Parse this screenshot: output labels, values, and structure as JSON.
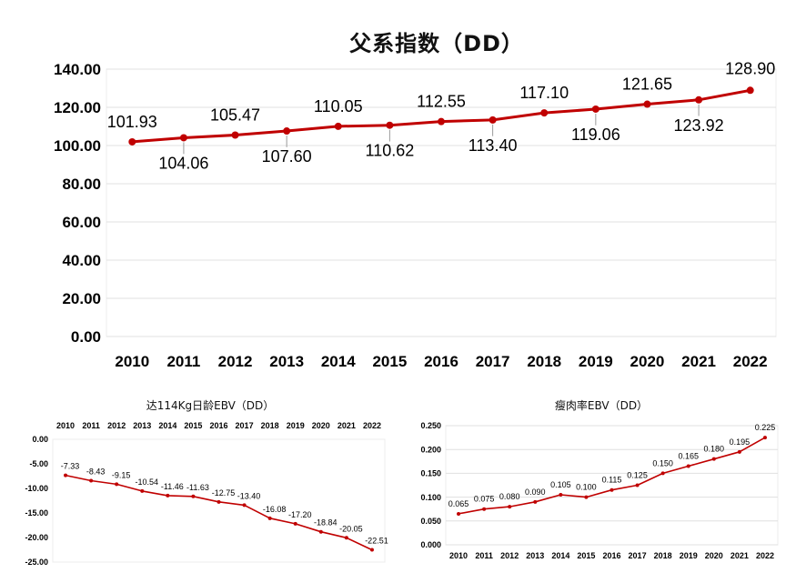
{
  "chart_data": [
    {
      "type": "line",
      "title": "父系指数（DD）",
      "categories": [
        "2010",
        "2011",
        "2012",
        "2013",
        "2014",
        "2015",
        "2016",
        "2017",
        "2018",
        "2019",
        "2020",
        "2021",
        "2022"
      ],
      "values": [
        101.93,
        104.06,
        105.47,
        107.6,
        110.05,
        110.62,
        112.55,
        113.4,
        117.1,
        119.06,
        121.65,
        123.92,
        128.9
      ],
      "data_labels": [
        "101.93",
        "104.06",
        "105.47",
        "107.60",
        "110.05",
        "110.62",
        "112.55",
        "113.40",
        "117.10",
        "119.06",
        "121.65",
        "123.92",
        "128.90"
      ],
      "y_ticks": [
        "0.00",
        "20.00",
        "40.00",
        "60.00",
        "80.00",
        "100.00",
        "120.00",
        "140.00"
      ],
      "ylim": [
        0,
        140
      ],
      "grid": true,
      "xlabel": "",
      "ylabel": "",
      "color": "#c00000"
    },
    {
      "type": "line",
      "title": "达114Kg日龄EBV（DD）",
      "categories": [
        "2010",
        "2011",
        "2012",
        "2013",
        "2014",
        "2015",
        "2016",
        "2017",
        "2018",
        "2019",
        "2020",
        "2021",
        "2022"
      ],
      "values": [
        -7.33,
        -8.43,
        -9.15,
        -10.54,
        -11.46,
        -11.63,
        -12.75,
        -13.4,
        -16.08,
        -17.2,
        -18.84,
        -20.05,
        -22.51
      ],
      "data_labels": [
        "-7.33",
        "-8.43",
        "-9.15",
        "-10.54",
        "-11.46",
        "-11.63",
        "-12.75",
        "-13.40",
        "-16.08",
        "-17.20",
        "-18.84",
        "-20.05",
        "-22.51"
      ],
      "y_ticks": [
        "0.00",
        "-5.00",
        "-10.00",
        "-15.00",
        "-20.00",
        "-25.00"
      ],
      "ylim": [
        -25,
        0
      ],
      "grid": false,
      "category_axis_position": "top",
      "xlabel": "",
      "ylabel": "",
      "color": "#c00000"
    },
    {
      "type": "line",
      "title": "瘦肉率EBV（DD）",
      "categories": [
        "2010",
        "2011",
        "2012",
        "2013",
        "2014",
        "2015",
        "2016",
        "2017",
        "2018",
        "2019",
        "2020",
        "2021",
        "2022"
      ],
      "values": [
        0.065,
        0.075,
        0.08,
        0.09,
        0.105,
        0.1,
        0.115,
        0.125,
        0.15,
        0.165,
        0.18,
        0.195,
        0.225
      ],
      "data_labels": [
        "0.065",
        "0.075",
        "0.080",
        "0.090",
        "0.105",
        "0.100",
        "0.115",
        "0.125",
        "0.150",
        "0.165",
        "0.180",
        "0.195",
        "0.225"
      ],
      "y_ticks": [
        "0.000",
        "0.050",
        "0.100",
        "0.150",
        "0.200",
        "0.250"
      ],
      "ylim": [
        0,
        0.25
      ],
      "grid": true,
      "xlabel": "",
      "ylabel": "",
      "color": "#c00000"
    }
  ]
}
